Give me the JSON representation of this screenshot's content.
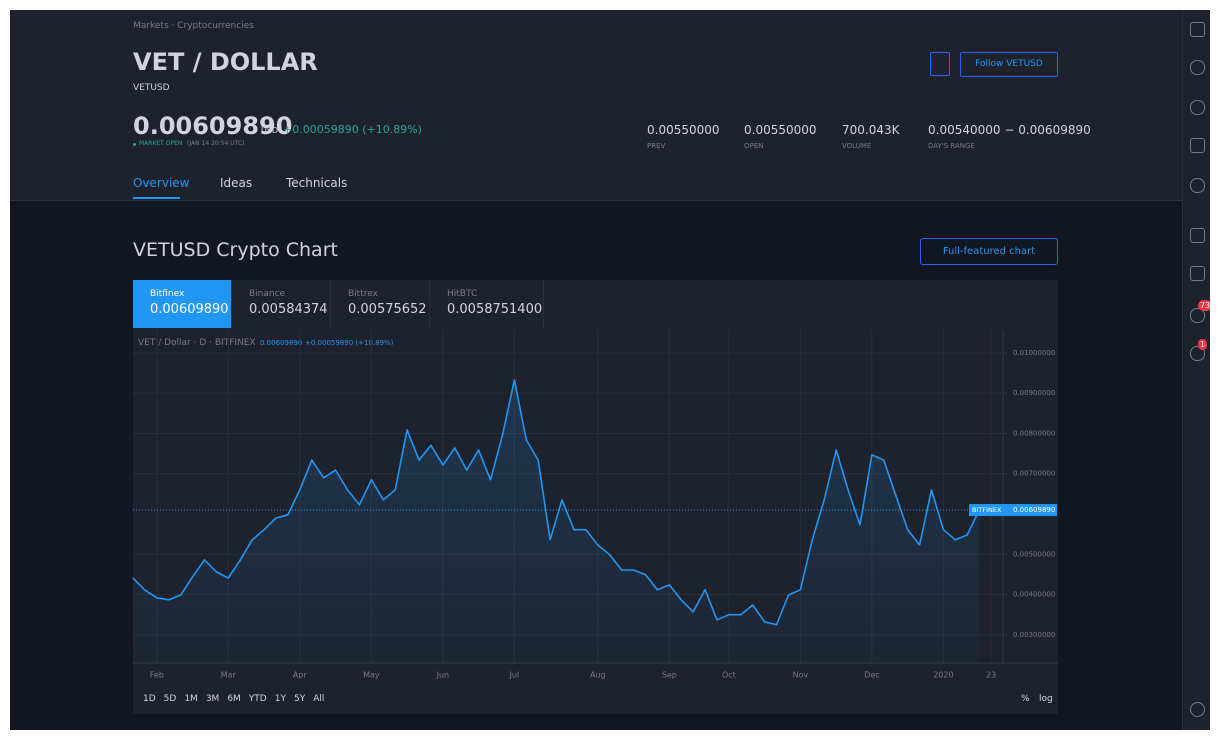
{
  "breadcrumb": "Markets · Cryptocurrencies",
  "header": {
    "title": "VET / DOLLAR",
    "symbol": "VETUSD",
    "price": "0.00609890",
    "currency": "USD",
    "change": "+0.00059890 (+10.89%)",
    "status": "MARKET OPEN",
    "status_time": "(JAN 14 20:54 UTC)",
    "follow": "Follow VETUSD"
  },
  "stats": [
    {
      "value": "0.00550000",
      "label": "PREV"
    },
    {
      "value": "0.00550000",
      "label": "OPEN"
    },
    {
      "value": "700.043K",
      "label": "VOLUME"
    },
    {
      "value": "0.00540000 − 0.00609890",
      "label": "DAY'S RANGE"
    }
  ],
  "tabs": [
    "Overview",
    "Ideas",
    "Technicals"
  ],
  "section": {
    "title": "VETUSD Crypto Chart",
    "button": "Full-featured chart"
  },
  "exchanges": [
    {
      "name": "Bitfinex",
      "price": "0.00609890"
    },
    {
      "name": "Binance",
      "price": "0.00584374"
    },
    {
      "name": "Bittrex",
      "price": "0.00575652"
    },
    {
      "name": "HitBTC",
      "price": "0.0058751400"
    }
  ],
  "legend": "VET / Dollar · D · BITFINEX",
  "badge": "BITFINEX",
  "ranges": [
    "1D",
    "5D",
    "1M",
    "3M",
    "6M",
    "YTD",
    "1Y",
    "5Y",
    "All"
  ],
  "scale_options": [
    "%",
    "log"
  ],
  "sidebar_badges": [
    "73",
    "1"
  ],
  "chart_data": {
    "type": "area",
    "color": "#2196f3",
    "categories": [
      null,
      null,
      "Feb",
      null,
      null,
      null,
      null,
      null,
      "Mar",
      null,
      null,
      null,
      null,
      null,
      "Apr",
      null,
      null,
      null,
      null,
      null,
      "May",
      null,
      null,
      null,
      null,
      null,
      "Jun",
      null,
      null,
      null,
      null,
      null,
      "Jul",
      null,
      null,
      null,
      null,
      null,
      null,
      "Aug",
      null,
      null,
      null,
      null,
      null,
      "Sep",
      null,
      null,
      null,
      null,
      "Oct",
      null,
      null,
      null,
      null,
      null,
      "Nov",
      null,
      null,
      null,
      null,
      null,
      "Dec",
      null,
      null,
      null,
      null,
      null,
      "2020",
      null,
      null,
      null,
      "23"
    ],
    "values": [
      0.00441,
      0.00411,
      0.00392,
      0.00387,
      0.00399,
      0.00444,
      0.00486,
      0.00456,
      0.00441,
      0.00486,
      0.00536,
      0.00561,
      0.0059,
      0.00598,
      0.0066,
      0.00734,
      0.0069,
      0.00709,
      0.0066,
      0.00623,
      0.00685,
      0.00635,
      0.0066,
      0.00809,
      0.00734,
      0.00771,
      0.00722,
      0.00764,
      0.00709,
      0.00759,
      0.00685,
      0.00796,
      0.00933,
      0.00784,
      0.00734,
      0.00536,
      0.00635,
      0.00561,
      0.00561,
      0.00523,
      0.00499,
      0.00461,
      0.00461,
      0.00449,
      0.00412,
      0.00424,
      0.00387,
      0.00357,
      0.00412,
      0.00337,
      0.0035,
      0.0035,
      0.00374,
      0.00332,
      0.00325,
      0.00399,
      0.00412,
      0.00536,
      0.00635,
      0.00759,
      0.0066,
      0.00573,
      0.00747,
      0.00734,
      0.00647,
      0.00561,
      0.00523,
      0.0066,
      0.00561,
      0.00536,
      0.00548,
      0.0060989,
      null
    ],
    "ylim": [
      0.0023,
      0.01057
    ],
    "yticks": [
      {
        "value": 0.003,
        "label": "0.00300000"
      },
      {
        "value": 0.004,
        "label": "0.00400000"
      },
      {
        "value": 0.005,
        "label": "0.00500000"
      },
      {
        "value": 0.007,
        "label": "0.00700000"
      },
      {
        "value": 0.008,
        "label": "0.00800000"
      },
      {
        "value": 0.009,
        "label": "0.00900000"
      },
      {
        "value": 0.01,
        "label": "0.01000000"
      }
    ],
    "grid": true
  }
}
